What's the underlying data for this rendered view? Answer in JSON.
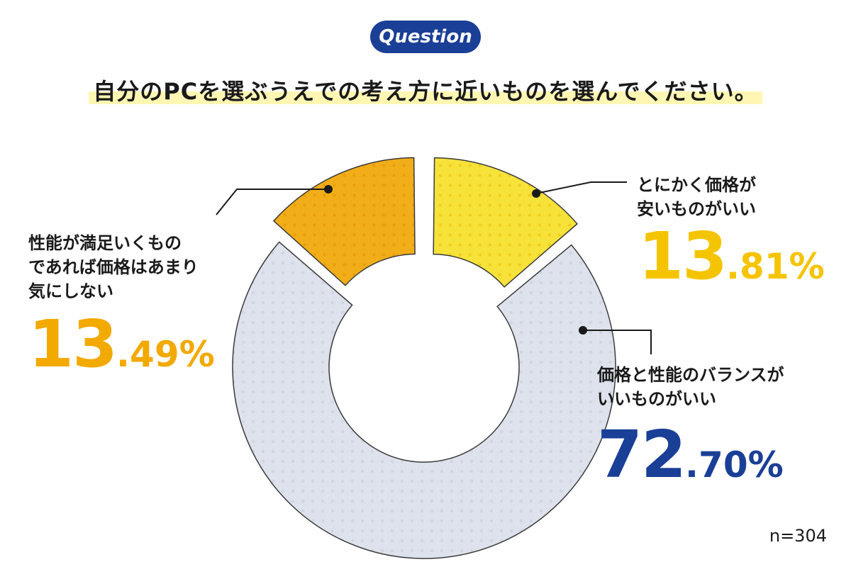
{
  "badge": "Question",
  "question": "自分のPCを選ぶうえでの考え方に近いものを選んでください。",
  "sample_size": "n=304",
  "colors": {
    "cheap": "#f7e23a",
    "satisfied": "#f2ae18",
    "balance": "#dde2ec",
    "blue": "#1a3f96"
  },
  "chart_data": {
    "type": "pie",
    "donut": true,
    "title": "自分のPCを選ぶうえでの考え方に近いものを選んでください。",
    "n": 304,
    "slices": [
      {
        "label_lines": [
          "とにかく価格が",
          "安いものがいい"
        ],
        "value": 13.81,
        "pct_int": "13",
        "pct_frac": ".81%"
      },
      {
        "label_lines": [
          "価格と性能のバランスが",
          "いいものがいい"
        ],
        "value": 72.7,
        "pct_int": "72",
        "pct_frac": ".70%"
      },
      {
        "label_lines": [
          "性能が満足いくもの",
          "であれば価格はあまり",
          "気にしない"
        ],
        "value": 13.49,
        "pct_int": "13",
        "pct_frac": ".49%"
      }
    ]
  }
}
